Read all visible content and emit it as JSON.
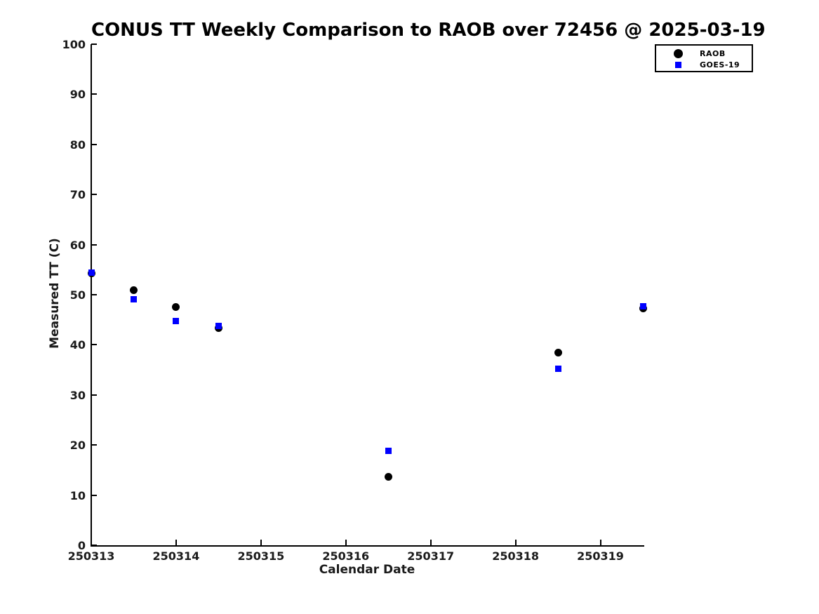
{
  "title": "CONUS TT Weekly Comparison to RAOB over 72456 @ 2025-03-19",
  "colors": {
    "raob": "#000000",
    "goes19": "#0000ff",
    "axis": "#000000",
    "background": "#ffffff"
  },
  "legend": {
    "entries": [
      {
        "label": "RAOB",
        "marker": "circle",
        "color": "#000000"
      },
      {
        "label": "GOES-19",
        "marker": "square",
        "color": "#0000ff"
      }
    ],
    "position": "upper-right"
  },
  "chart_data": {
    "type": "scatter",
    "title": "CONUS TT Weekly Comparison to RAOB over 72456 @ 2025-03-19",
    "xlabel": "Calendar Date",
    "ylabel": "Measured TT (C)",
    "xlim": [
      250313,
      250319.5
    ],
    "ylim": [
      0,
      100
    ],
    "xticks": [
      250313,
      250314,
      250315,
      250316,
      250317,
      250318,
      250319
    ],
    "yticks": [
      0,
      10,
      20,
      30,
      40,
      50,
      60,
      70,
      80,
      90,
      100
    ],
    "grid": false,
    "legend_position": "upper-right",
    "x": [
      250313.0,
      250313.5,
      250314.0,
      250314.5,
      250316.5,
      250318.5,
      250319.5
    ],
    "series": [
      {
        "name": "RAOB",
        "marker": "circle",
        "color": "#000000",
        "values": [
          54.3,
          50.9,
          47.5,
          43.3,
          13.7,
          38.4,
          47.3
        ]
      },
      {
        "name": "GOES-19",
        "marker": "square",
        "color": "#0000ff",
        "values": [
          54.4,
          49.1,
          44.7,
          43.7,
          18.8,
          35.2,
          47.7
        ]
      }
    ]
  }
}
